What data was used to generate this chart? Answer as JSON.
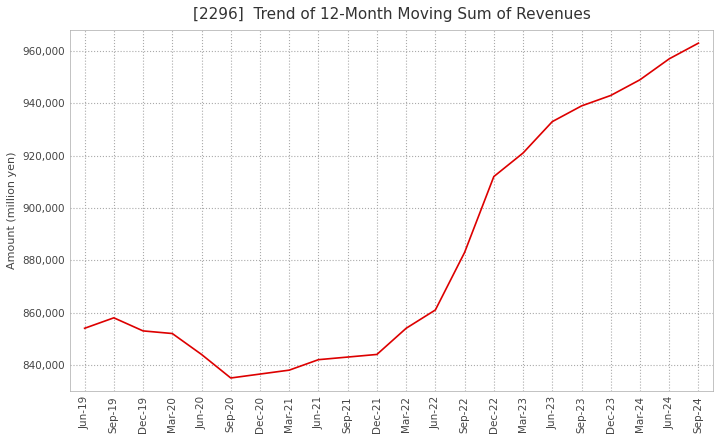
{
  "title": "[2296]  Trend of 12-Month Moving Sum of Revenues",
  "ylabel": "Amount (million yen)",
  "background_color": "#ffffff",
  "grid_color": "#aaaaaa",
  "line_color": "#dd0000",
  "dates": [
    "Jun-19",
    "Sep-19",
    "Dec-19",
    "Mar-20",
    "Jun-20",
    "Sep-20",
    "Dec-20",
    "Mar-21",
    "Jun-21",
    "Sep-21",
    "Dec-21",
    "Mar-22",
    "Jun-22",
    "Sep-22",
    "Dec-22",
    "Mar-23",
    "Jun-23",
    "Sep-23",
    "Dec-23",
    "Mar-24",
    "Jun-24",
    "Sep-24"
  ],
  "values": [
    854000,
    858000,
    853000,
    852000,
    844000,
    835000,
    836500,
    838000,
    842000,
    843000,
    844000,
    854000,
    861000,
    883000,
    912000,
    921000,
    933000,
    939000,
    943000,
    949000,
    957000,
    963000
  ],
  "ylim": [
    830000,
    968000
  ],
  "yticks": [
    840000,
    860000,
    880000,
    900000,
    920000,
    940000,
    960000
  ],
  "title_fontsize": 11,
  "ylabel_fontsize": 8,
  "tick_fontsize": 7.5
}
